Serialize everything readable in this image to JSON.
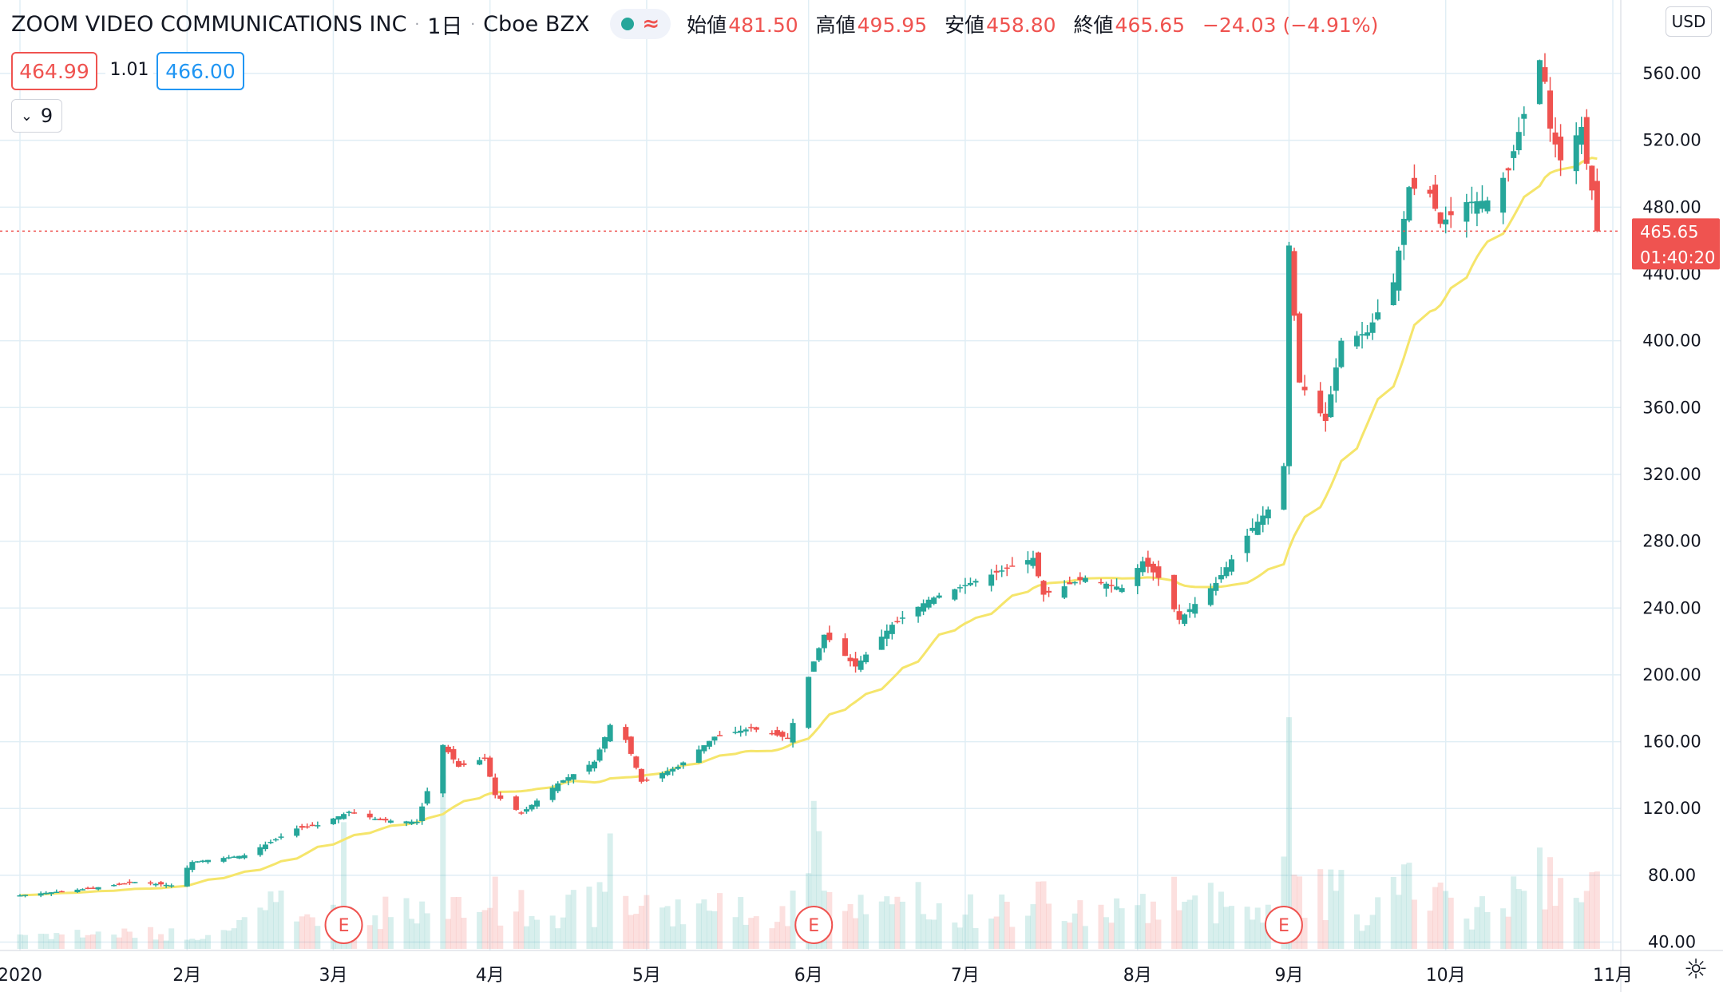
{
  "header": {
    "symbol": "ZOOM VIDEO COMMUNICATIONS INC",
    "interval": "1日",
    "exchange": "Cboe BZX",
    "ohlc": {
      "open_label": "始値",
      "open": "481.50",
      "high_label": "高値",
      "high": "495.95",
      "low_label": "安値",
      "low": "458.80",
      "close_label": "終値",
      "close": "465.65",
      "change": "−24.03 (−4.91%)"
    }
  },
  "quote": {
    "bid": "464.99",
    "spread": "1.01",
    "ask": "466.00"
  },
  "indicator_toggle": {
    "count": "9"
  },
  "currency": "USD",
  "price_label": {
    "value": "465.65",
    "countdown": "01:40:20"
  },
  "earnings_marker_label": "E",
  "colors": {
    "up": "#26a69a",
    "down": "#ef5350",
    "ma": "#f5e56b",
    "grid": "#e0eef5",
    "ask": "#2196f3"
  },
  "icons": {
    "market_status": "green-dot-icon",
    "delay": "wave-icon",
    "collapse": "chevron-down-icon",
    "settings": "gear-icon"
  },
  "chart_data": {
    "type": "candlestick",
    "ylim": [
      35,
      604
    ],
    "y_ticks": [
      40,
      80,
      120,
      160,
      200,
      240,
      280,
      320,
      360,
      400,
      440,
      480,
      520,
      560
    ],
    "y_tick_labels": [
      "40.00",
      "80.00",
      "120.00",
      "160.00",
      "200.00",
      "240.00",
      "280.00",
      "320.00",
      "360.00",
      "400.00",
      "440.00",
      "480.00",
      "520.00",
      "560.00"
    ],
    "x_labels": [
      "2020",
      "2月",
      "3月",
      "4月",
      "5月",
      "6月",
      "7月",
      "8月",
      "9月",
      "10月",
      "11月"
    ],
    "x_label_dates": [
      "2020-01-02",
      "2020-02-03",
      "2020-03-02",
      "2020-04-01",
      "2020-05-01",
      "2020-06-01",
      "2020-07-01",
      "2020-08-03",
      "2020-09-01",
      "2020-10-01",
      "2020-11-02"
    ],
    "earnings_dates": [
      "2020-03-04",
      "2020-06-02",
      "2020-08-31"
    ],
    "last_price": 465.65,
    "series": [
      {
        "name": "price",
        "points": [
          {
            "date": "2020-01-02",
            "value": 68
          },
          {
            "date": "2020-01-15",
            "value": 72
          },
          {
            "date": "2020-01-24",
            "value": 76
          },
          {
            "date": "2020-01-31",
            "value": 74
          },
          {
            "date": "2020-02-04",
            "value": 88
          },
          {
            "date": "2020-02-14",
            "value": 92
          },
          {
            "date": "2020-02-24",
            "value": 108
          },
          {
            "date": "2020-02-28",
            "value": 110
          },
          {
            "date": "2020-03-05",
            "value": 118
          },
          {
            "date": "2020-03-11",
            "value": 113
          },
          {
            "date": "2020-03-18",
            "value": 112
          },
          {
            "date": "2020-03-23",
            "value": 158
          },
          {
            "date": "2020-03-26",
            "value": 145
          },
          {
            "date": "2020-03-31",
            "value": 150
          },
          {
            "date": "2020-04-02",
            "value": 128
          },
          {
            "date": "2020-04-07",
            "value": 117
          },
          {
            "date": "2020-04-14",
            "value": 135
          },
          {
            "date": "2020-04-21",
            "value": 148
          },
          {
            "date": "2020-04-24",
            "value": 170
          },
          {
            "date": "2020-04-27",
            "value": 161
          },
          {
            "date": "2020-04-30",
            "value": 136
          },
          {
            "date": "2020-05-07",
            "value": 145
          },
          {
            "date": "2020-05-14",
            "value": 163
          },
          {
            "date": "2020-05-21",
            "value": 168
          },
          {
            "date": "2020-05-28",
            "value": 162
          },
          {
            "date": "2020-06-02",
            "value": 208
          },
          {
            "date": "2020-06-04",
            "value": 224
          },
          {
            "date": "2020-06-10",
            "value": 205
          },
          {
            "date": "2020-06-17",
            "value": 230
          },
          {
            "date": "2020-06-24",
            "value": 245
          },
          {
            "date": "2020-07-02",
            "value": 255
          },
          {
            "date": "2020-07-10",
            "value": 265
          },
          {
            "date": "2020-07-14",
            "value": 270
          },
          {
            "date": "2020-07-16",
            "value": 248
          },
          {
            "date": "2020-07-24",
            "value": 258
          },
          {
            "date": "2020-07-31",
            "value": 252
          },
          {
            "date": "2020-08-04",
            "value": 268
          },
          {
            "date": "2020-08-07",
            "value": 258
          },
          {
            "date": "2020-08-11",
            "value": 233
          },
          {
            "date": "2020-08-18",
            "value": 255
          },
          {
            "date": "2020-08-25",
            "value": 288
          },
          {
            "date": "2020-08-28",
            "value": 299
          },
          {
            "date": "2020-08-31",
            "value": 325
          },
          {
            "date": "2020-09-01",
            "value": 457
          },
          {
            "date": "2020-09-02",
            "value": 415
          },
          {
            "date": "2020-09-03",
            "value": 375
          },
          {
            "date": "2020-09-08",
            "value": 352
          },
          {
            "date": "2020-09-11",
            "value": 400
          },
          {
            "date": "2020-09-16",
            "value": 405
          },
          {
            "date": "2020-09-21",
            "value": 435
          },
          {
            "date": "2020-09-24",
            "value": 492
          },
          {
            "date": "2020-09-28",
            "value": 488
          },
          {
            "date": "2020-09-30",
            "value": 470
          },
          {
            "date": "2020-10-05",
            "value": 483
          },
          {
            "date": "2020-10-09",
            "value": 484
          },
          {
            "date": "2020-10-13",
            "value": 502
          },
          {
            "date": "2020-10-15",
            "value": 525
          },
          {
            "date": "2020-10-19",
            "value": 568
          },
          {
            "date": "2020-10-20",
            "value": 555
          },
          {
            "date": "2020-10-21",
            "value": 527
          },
          {
            "date": "2020-10-23",
            "value": 508
          },
          {
            "date": "2020-10-27",
            "value": 528
          },
          {
            "date": "2020-10-28",
            "value": 506
          },
          {
            "date": "2020-10-29",
            "value": 490
          },
          {
            "date": "2020-10-30",
            "value": 465.65
          }
        ]
      }
    ]
  }
}
